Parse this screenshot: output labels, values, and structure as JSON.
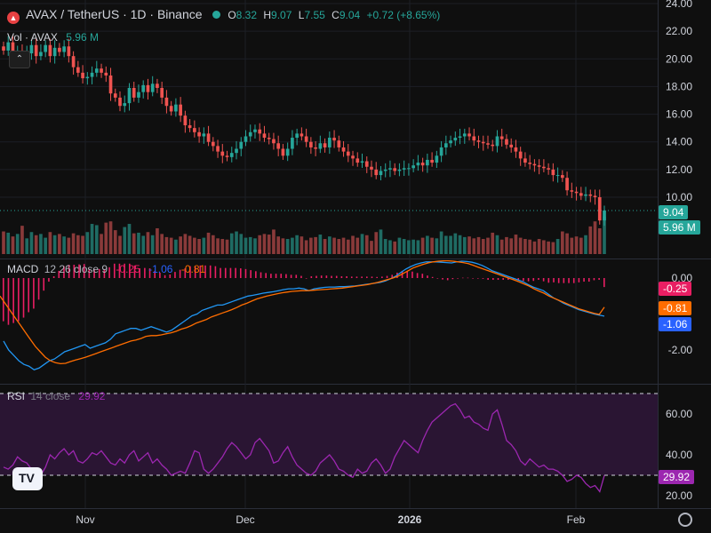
{
  "header": {
    "symbol": "AVAX / TetherUS · 1D · Binance",
    "ohlc": {
      "o_label": "O",
      "o": "8.32",
      "h_label": "H",
      "h": "9.07",
      "l_label": "L",
      "l": "7.55",
      "c_label": "C",
      "c": "9.04",
      "change": "+0.72 (+8.65%)"
    },
    "volume_label": "Vol · AVAX",
    "volume_value": "5.96 M"
  },
  "badges": {
    "price": "9.04",
    "volume": "5.96 M",
    "macd_hist": "-0.25",
    "macd_signal": "-0.81",
    "macd_line": "-1.06",
    "rsi": "29.92"
  },
  "macd_legend": {
    "name": "MACD",
    "params": "12 26 close 9",
    "hist": "-0.25",
    "macd": "-1.06",
    "signal": "-0.81"
  },
  "rsi_legend": {
    "name": "RSI",
    "params": "14 close",
    "value": "29.92"
  },
  "colors": {
    "up": "#26a69a",
    "down": "#ef5350",
    "macd": "#2962ff",
    "signal": "#ff6d00",
    "hist": "#e91e63",
    "rsi": "#9c27b0",
    "bg": "#0f0f0f"
  },
  "chart_data": [
    {
      "type": "candlestick",
      "title": "AVAX / TetherUS · 1D · Binance",
      "y_ticks": [
        10,
        12,
        14,
        16,
        18,
        20,
        22,
        24
      ],
      "x_ticks": [
        "Nov",
        "Dec",
        "2026",
        "Feb"
      ],
      "ylim": [
        8.5,
        24
      ],
      "closes": [
        20.6,
        21.2,
        20.2,
        20.6,
        20.3,
        20.4,
        21.0,
        20.2,
        20.5,
        21.0,
        20.2,
        20.8,
        20.5,
        20.9,
        20.2,
        19.4,
        19.0,
        18.6,
        18.7,
        19.0,
        19.3,
        19.0,
        18.8,
        17.5,
        17.2,
        16.6,
        16.8,
        17.9,
        17.2,
        17.6,
        18.1,
        17.6,
        18.2,
        17.9,
        17.2,
        16.6,
        16.2,
        16.7,
        15.9,
        15.2,
        15.0,
        14.7,
        14.4,
        14.6,
        14.0,
        13.7,
        13.3,
        13.0,
        12.9,
        13.2,
        13.5,
        14.0,
        14.4,
        14.7,
        14.9,
        14.6,
        14.3,
        14.2,
        13.9,
        13.5,
        13.0,
        13.5,
        14.3,
        14.6,
        14.4,
        14.0,
        13.6,
        13.5,
        13.9,
        13.6,
        14.3,
        14.1,
        13.6,
        13.3,
        13.0,
        12.8,
        12.5,
        12.6,
        12.2,
        12.0,
        11.6,
        11.9,
        12.0,
        12.1,
        11.9,
        12.0,
        12.1,
        12.1,
        12.3,
        12.5,
        12.3,
        12.7,
        12.5,
        13.0,
        13.6,
        13.9,
        14.1,
        14.3,
        14.4,
        14.6,
        14.4,
        14.1,
        14.0,
        13.9,
        13.8,
        13.7,
        14.4,
        14.2,
        13.8,
        13.6,
        13.3,
        12.8,
        12.5,
        12.4,
        12.3,
        12.2,
        12.1,
        12.0,
        11.6,
        11.6,
        11.4,
        10.5,
        10.4,
        10.3,
        10.1,
        10.2,
        10.1,
        10.0,
        8.32,
        9.04
      ],
      "volume_label": "Vol · AVAX",
      "volume": [
        3.6,
        3.4,
        2.8,
        3.2,
        4.5,
        2.5,
        3.5,
        3.0,
        3.2,
        2.6,
        3.5,
        3.0,
        3.2,
        2.8,
        2.6,
        3.3,
        3.0,
        2.9,
        3.5,
        4.8,
        4.6,
        3.2,
        5.0,
        5.2,
        3.8,
        2.9,
        4.3,
        4.8,
        3.3,
        3.4,
        2.9,
        3.5,
        3.0,
        4.1,
        3.2,
        2.7,
        2.6,
        2.3,
        2.8,
        3.2,
        2.9,
        2.6,
        2.4,
        2.6,
        3.4,
        3.0,
        2.5,
        2.4,
        2.3,
        3.3,
        3.6,
        3.2,
        2.6,
        2.7,
        2.5,
        3.0,
        3.2,
        3.1,
        3.9,
        2.8,
        2.5,
        2.4,
        2.6,
        3.0,
        2.8,
        2.2,
        2.6,
        2.7,
        3.1,
        2.4,
        2.8,
        2.6,
        2.4,
        2.6,
        2.3,
        2.9,
        2.6,
        3.2,
        3.0,
        2.1,
        3.5,
        3.9,
        2.4,
        2.2,
        2.0,
        2.6,
        2.4,
        2.2,
        2.3,
        2.2,
        2.6,
        2.9,
        2.6,
        2.5,
        3.6,
        2.9,
        2.9,
        3.3,
        3.0,
        2.7,
        2.8,
        2.5,
        2.7,
        2.4,
        2.6,
        3.4,
        3.0,
        2.3,
        2.7,
        2.5,
        3.1,
        2.6,
        2.4,
        2.3,
        2.0,
        2.4,
        2.2,
        2.0,
        1.9,
        2.4,
        3.6,
        3.3,
        2.6,
        2.8,
        2.6,
        3.0,
        4.4,
        5.2,
        4.1,
        5.96
      ]
    },
    {
      "type": "line",
      "title": "MACD",
      "params": "12 26 close 9",
      "y_ticks": [
        0.0,
        -2.0
      ],
      "ylim": [
        -3.0,
        0.7
      ],
      "series": [
        {
          "name": "MACD",
          "values": [
            -1.75,
            -2.0,
            -2.15,
            -2.3,
            -2.4,
            -2.45,
            -2.55,
            -2.5,
            -2.4,
            -2.3,
            -2.25,
            -2.15,
            -2.05,
            -2.0,
            -1.95,
            -1.9,
            -1.85,
            -1.95,
            -1.9,
            -1.85,
            -1.8,
            -1.7,
            -1.55,
            -1.5,
            -1.45,
            -1.4,
            -1.4,
            -1.45,
            -1.4,
            -1.35,
            -1.4,
            -1.45,
            -1.5,
            -1.45,
            -1.35,
            -1.25,
            -1.15,
            -1.05,
            -1.0,
            -0.9,
            -0.85,
            -0.8,
            -0.75,
            -0.75,
            -0.7,
            -0.65,
            -0.6,
            -0.55,
            -0.5,
            -0.48,
            -0.45,
            -0.42,
            -0.4,
            -0.38,
            -0.35,
            -0.32,
            -0.3,
            -0.3,
            -0.28,
            -0.3,
            -0.35,
            -0.3,
            -0.28,
            -0.26,
            -0.25,
            -0.25,
            -0.24,
            -0.24,
            -0.23,
            -0.22,
            -0.2,
            -0.18,
            -0.16,
            -0.14,
            -0.12,
            -0.08,
            -0.02,
            0.05,
            0.15,
            0.25,
            0.32,
            0.38,
            0.42,
            0.45,
            0.45,
            0.45,
            0.44,
            0.43,
            0.42,
            0.45,
            0.47,
            0.46,
            0.44,
            0.4,
            0.35,
            0.28,
            0.2,
            0.15,
            0.1,
            0.05,
            0.0,
            -0.05,
            -0.1,
            -0.18,
            -0.25,
            -0.3,
            -0.35,
            -0.45,
            -0.55,
            -0.62,
            -0.7,
            -0.76,
            -0.82,
            -0.88,
            -0.92,
            -0.96,
            -1.0,
            -1.03,
            -1.06
          ]
        },
        {
          "name": "Signal",
          "values": [
            -0.5,
            -0.7,
            -0.9,
            -1.1,
            -1.3,
            -1.5,
            -1.7,
            -1.9,
            -2.05,
            -2.2,
            -2.3,
            -2.35,
            -2.38,
            -2.37,
            -2.32,
            -2.28,
            -2.24,
            -2.2,
            -2.15,
            -2.1,
            -2.05,
            -2.0,
            -1.95,
            -1.9,
            -1.85,
            -1.8,
            -1.75,
            -1.72,
            -1.68,
            -1.62,
            -1.6,
            -1.6,
            -1.58,
            -1.55,
            -1.52,
            -1.48,
            -1.42,
            -1.38,
            -1.32,
            -1.25,
            -1.2,
            -1.15,
            -1.08,
            -1.03,
            -0.98,
            -0.93,
            -0.88,
            -0.82,
            -0.75,
            -0.7,
            -0.64,
            -0.58,
            -0.54,
            -0.5,
            -0.47,
            -0.44,
            -0.41,
            -0.39,
            -0.37,
            -0.36,
            -0.35,
            -0.35,
            -0.34,
            -0.33,
            -0.32,
            -0.31,
            -0.3,
            -0.29,
            -0.28,
            -0.26,
            -0.24,
            -0.22,
            -0.2,
            -0.18,
            -0.15,
            -0.12,
            -0.08,
            -0.04,
            0.0,
            0.05,
            0.12,
            0.2,
            0.28,
            0.33,
            0.38,
            0.42,
            0.45,
            0.47,
            0.48,
            0.48,
            0.47,
            0.45,
            0.43,
            0.4,
            0.35,
            0.3,
            0.25,
            0.2,
            0.15,
            0.1,
            0.05,
            0.0,
            -0.05,
            -0.1,
            -0.16,
            -0.22,
            -0.3,
            -0.36,
            -0.42,
            -0.5,
            -0.56,
            -0.62,
            -0.68,
            -0.74,
            -0.8,
            -0.86,
            -0.9,
            -0.94,
            -0.98,
            -1.01,
            -0.81
          ]
        }
      ],
      "histogram": [
        -1.2,
        -1.3,
        -1.25,
        -1.2,
        -1.1,
        -0.95,
        -0.85,
        -0.6,
        -0.35,
        -0.1,
        0.05,
        0.2,
        0.33,
        0.37,
        0.37,
        0.38,
        0.39,
        0.25,
        0.25,
        0.25,
        0.25,
        0.3,
        0.4,
        0.4,
        0.4,
        0.4,
        0.35,
        0.27,
        0.28,
        0.27,
        0.2,
        0.15,
        0.08,
        0.1,
        0.17,
        0.23,
        0.27,
        0.33,
        0.32,
        0.35,
        0.35,
        0.35,
        0.33,
        0.28,
        0.28,
        0.28,
        0.28,
        0.27,
        0.25,
        0.22,
        0.19,
        0.16,
        0.14,
        0.12,
        0.12,
        0.12,
        0.11,
        0.09,
        0.09,
        0.06,
        0.0,
        0.05,
        0.06,
        0.07,
        0.07,
        0.06,
        0.06,
        0.05,
        0.05,
        0.04,
        0.04,
        0.04,
        0.04,
        0.04,
        0.03,
        0.04,
        0.06,
        0.09,
        0.15,
        0.2,
        0.2,
        0.18,
        0.14,
        0.12,
        0.07,
        0.03,
        -0.01,
        -0.04,
        -0.06,
        -0.03,
        0.0,
        0.01,
        0.01,
        0.0,
        0.0,
        -0.02,
        -0.05,
        -0.05,
        -0.05,
        -0.05,
        -0.05,
        -0.05,
        -0.05,
        -0.08,
        -0.09,
        -0.08,
        -0.05,
        -0.09,
        -0.13,
        -0.12,
        -0.14,
        -0.14,
        -0.14,
        -0.14,
        -0.12,
        -0.1,
        -0.1,
        -0.06,
        -0.05,
        -0.25
      ]
    },
    {
      "type": "line",
      "title": "RSI",
      "params": "14 close",
      "y_ticks": [
        20.0,
        40.0,
        60.0
      ],
      "ylim": [
        18,
        72
      ],
      "bands": [
        30,
        70
      ],
      "series": [
        {
          "name": "RSI",
          "values": [
            34,
            33,
            35,
            39,
            37,
            36,
            33,
            31,
            30,
            34,
            40,
            38,
            41,
            43,
            40,
            42,
            37,
            36,
            38,
            41,
            40,
            42,
            39,
            36,
            35,
            38,
            36,
            40,
            42,
            37,
            39,
            41,
            36,
            38,
            35,
            33,
            30,
            31,
            32,
            31,
            36,
            42,
            41,
            33,
            31,
            33,
            36,
            39,
            43,
            46,
            44,
            41,
            38,
            40,
            46,
            48,
            45,
            42,
            36,
            37,
            41,
            44,
            39,
            35,
            33,
            31,
            30,
            32,
            36,
            38,
            40,
            37,
            33,
            32,
            30,
            29,
            33,
            31,
            32,
            36,
            38,
            35,
            31,
            33,
            39,
            43,
            47,
            45,
            43,
            41,
            47,
            52,
            56,
            58,
            60,
            62,
            64,
            65,
            62,
            58,
            59,
            56,
            55,
            53,
            52,
            60,
            62,
            55,
            47,
            45,
            42,
            37,
            35,
            38,
            36,
            34,
            35,
            33,
            33,
            32,
            30,
            27,
            28,
            30,
            29,
            26,
            24,
            25,
            22,
            29.92
          ]
        }
      ]
    }
  ]
}
